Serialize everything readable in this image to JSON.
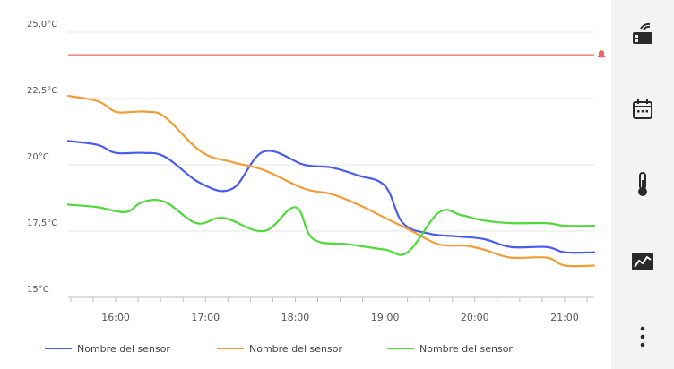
{
  "chart_data": {
    "type": "line",
    "y_ticks": [
      "25,0°C",
      "22,5°C",
      "20°C",
      "17,5°C",
      "15°C"
    ],
    "y_tick_values": [
      25,
      22.5,
      20,
      17.5,
      15
    ],
    "x_ticks": [
      "16:00",
      "17:00",
      "18:00",
      "19:00",
      "20:00",
      "21:00"
    ],
    "ylim": [
      15,
      25
    ],
    "xlim": [
      15.47,
      21.33
    ],
    "grid": true,
    "legend_position": "bottom",
    "threshold": {
      "value": 24.15,
      "color": "#f26060"
    },
    "series": [
      {
        "name": "Nombre del sensor",
        "color": "#4a5cf0",
        "x": [
          15.47,
          15.8,
          16.0,
          16.3,
          16.55,
          16.95,
          17.3,
          17.65,
          18.1,
          18.4,
          18.7,
          19.0,
          19.2,
          19.5,
          19.8,
          20.1,
          20.4,
          20.8,
          21.0,
          21.33
        ],
        "y": [
          20.9,
          20.75,
          20.45,
          20.45,
          20.3,
          19.3,
          19.1,
          20.5,
          20.0,
          19.9,
          19.6,
          19.2,
          17.8,
          17.4,
          17.3,
          17.2,
          16.9,
          16.9,
          16.7,
          16.7
        ]
      },
      {
        "name": "Nombre del sensor",
        "color": "#f39c35",
        "x": [
          15.47,
          15.8,
          16.0,
          16.2,
          16.35,
          16.55,
          16.95,
          17.3,
          17.65,
          18.1,
          18.4,
          18.7,
          19.0,
          19.3,
          19.6,
          19.9,
          20.1,
          20.4,
          20.8,
          21.0,
          21.33
        ],
        "y": [
          22.6,
          22.4,
          22.0,
          22.0,
          22.0,
          21.8,
          20.5,
          20.1,
          19.8,
          19.1,
          18.9,
          18.5,
          18.0,
          17.5,
          17.0,
          16.95,
          16.8,
          16.5,
          16.5,
          16.2,
          16.2
        ]
      },
      {
        "name": "Nombre del sensor",
        "color": "#4fd93a",
        "x": [
          15.47,
          15.8,
          16.0,
          16.15,
          16.3,
          16.55,
          16.9,
          17.2,
          17.65,
          18.0,
          18.2,
          18.6,
          19.0,
          19.25,
          19.6,
          19.85,
          20.1,
          20.4,
          20.8,
          21.0,
          21.33
        ],
        "y": [
          18.5,
          18.4,
          18.25,
          18.25,
          18.6,
          18.6,
          17.8,
          18.0,
          17.5,
          18.4,
          17.2,
          17.0,
          16.8,
          16.7,
          18.2,
          18.1,
          17.9,
          17.8,
          17.8,
          17.7,
          17.7
        ]
      }
    ]
  },
  "sidebar": {
    "items": [
      {
        "icon": "sensor-signal-icon"
      },
      {
        "icon": "calendar-icon"
      },
      {
        "icon": "thermometer-icon"
      },
      {
        "icon": "trend-chart-icon"
      },
      {
        "icon": "more-vertical-icon"
      }
    ]
  }
}
